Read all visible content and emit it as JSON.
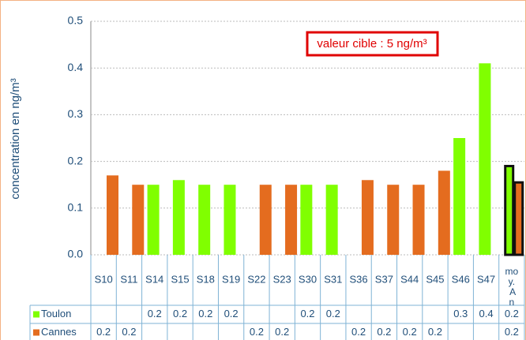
{
  "chart_data": {
    "type": "bar",
    "y_axis_label": "concentration en ng/m³",
    "annotation": "valeur cible : 5 ng/m³",
    "categories": [
      "S10",
      "S11",
      "S14",
      "S15",
      "S18",
      "S19",
      "S22",
      "S23",
      "S30",
      "S31",
      "S36",
      "S37",
      "S44",
      "S45",
      "S46",
      "S47",
      "moy. An"
    ],
    "series": [
      {
        "name": "Toulon",
        "color": "#80ff00",
        "values": [
          null,
          null,
          0.15,
          0.16,
          0.15,
          0.15,
          null,
          null,
          0.15,
          0.15,
          null,
          null,
          null,
          null,
          0.25,
          0.41,
          0.19
        ],
        "value_labels": [
          null,
          null,
          "0.2",
          "0.2",
          "0.2",
          "0.2",
          null,
          null,
          "0.2",
          "0.2",
          null,
          null,
          null,
          null,
          "0.3",
          "0.4",
          "0.2"
        ]
      },
      {
        "name": "Cannes",
        "color": "#e46c1f",
        "values": [
          0.17,
          0.15,
          null,
          null,
          null,
          null,
          0.15,
          0.15,
          null,
          null,
          0.16,
          0.15,
          0.15,
          0.18,
          null,
          null,
          0.155
        ],
        "value_labels": [
          "0.2",
          "0.2",
          null,
          null,
          null,
          null,
          "0.2",
          "0.2",
          null,
          null,
          "0.2",
          "0.2",
          "0.2",
          "0.2",
          null,
          null,
          "0.2"
        ]
      }
    ],
    "ylim": [
      0,
      0.5
    ],
    "yticks": [
      {
        "value": 0,
        "label": "0.0"
      },
      0.1,
      0.2,
      0.3,
      0.4,
      0.5
    ],
    "grid": true
  }
}
